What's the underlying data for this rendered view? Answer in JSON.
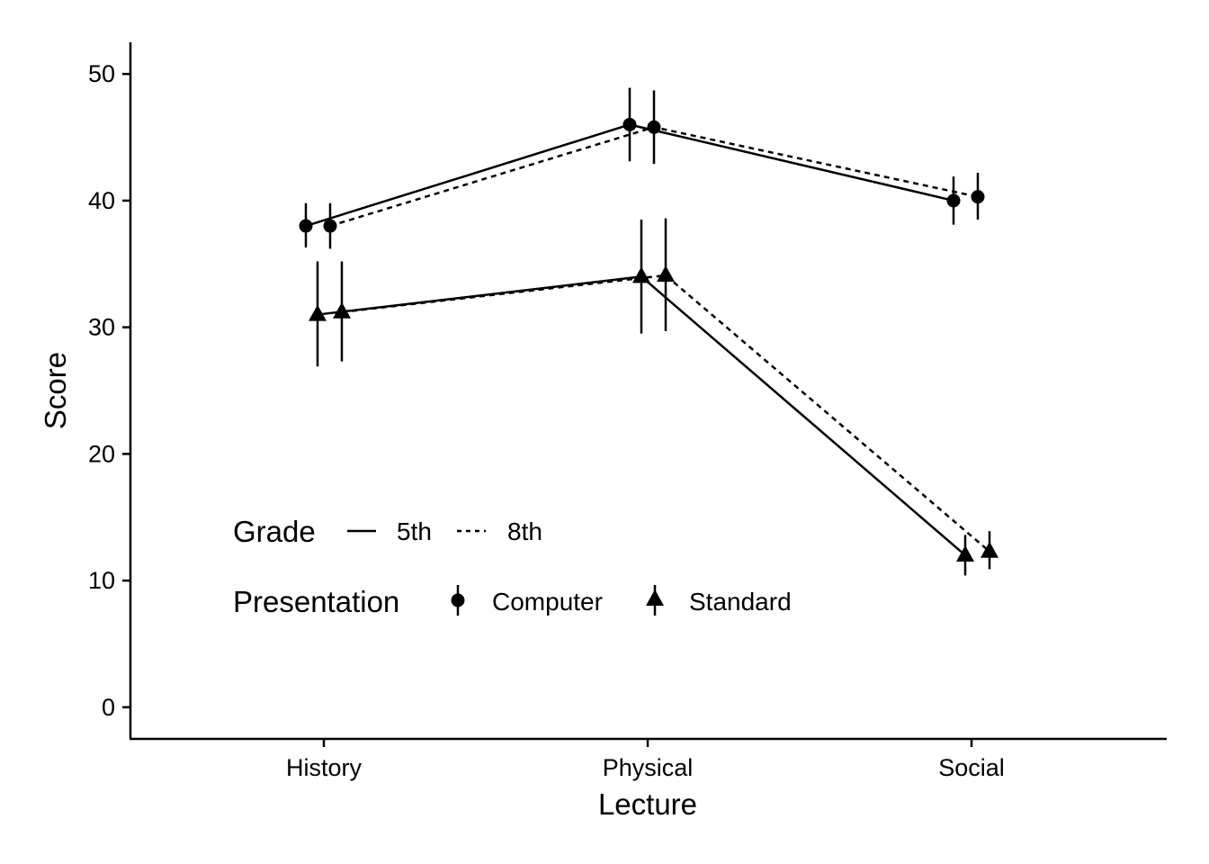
{
  "chart_data": {
    "type": "line",
    "xlabel": "Lecture",
    "ylabel": "Score",
    "categories": [
      "History",
      "Physical",
      "Social"
    ],
    "ylim": [
      -2.5,
      52.5
    ],
    "yticks": [
      0,
      10,
      20,
      30,
      40,
      50
    ],
    "grid": false,
    "error_bars": true,
    "legend": {
      "placement": "bottom-left",
      "grade": {
        "title": "Grade",
        "entries": [
          "5th",
          "8th"
        ]
      },
      "presentation": {
        "title": "Presentation",
        "entries": [
          "Computer",
          "Standard"
        ]
      }
    },
    "series": [
      {
        "grade": "5th",
        "presentation": "Computer",
        "line": "solid",
        "marker": "circle",
        "values": [
          38.0,
          46.0,
          40.0
        ],
        "lower": [
          36.3,
          43.1,
          38.1
        ],
        "upper": [
          39.8,
          48.9,
          41.9
        ]
      },
      {
        "grade": "8th",
        "presentation": "Computer",
        "line": "dashed",
        "marker": "circle",
        "values": [
          38.0,
          45.8,
          40.3
        ],
        "lower": [
          36.2,
          42.9,
          38.5
        ],
        "upper": [
          39.8,
          48.7,
          42.2
        ]
      },
      {
        "grade": "5th",
        "presentation": "Standard",
        "line": "solid",
        "marker": "triangle",
        "values": [
          31.0,
          34.0,
          12.0
        ],
        "lower": [
          26.9,
          29.5,
          10.4
        ],
        "upper": [
          35.2,
          38.5,
          13.6
        ]
      },
      {
        "grade": "8th",
        "presentation": "Standard",
        "line": "dashed",
        "marker": "triangle",
        "values": [
          31.2,
          34.1,
          12.3
        ],
        "lower": [
          27.3,
          29.7,
          10.9
        ],
        "upper": [
          35.2,
          38.6,
          13.9
        ]
      }
    ]
  }
}
